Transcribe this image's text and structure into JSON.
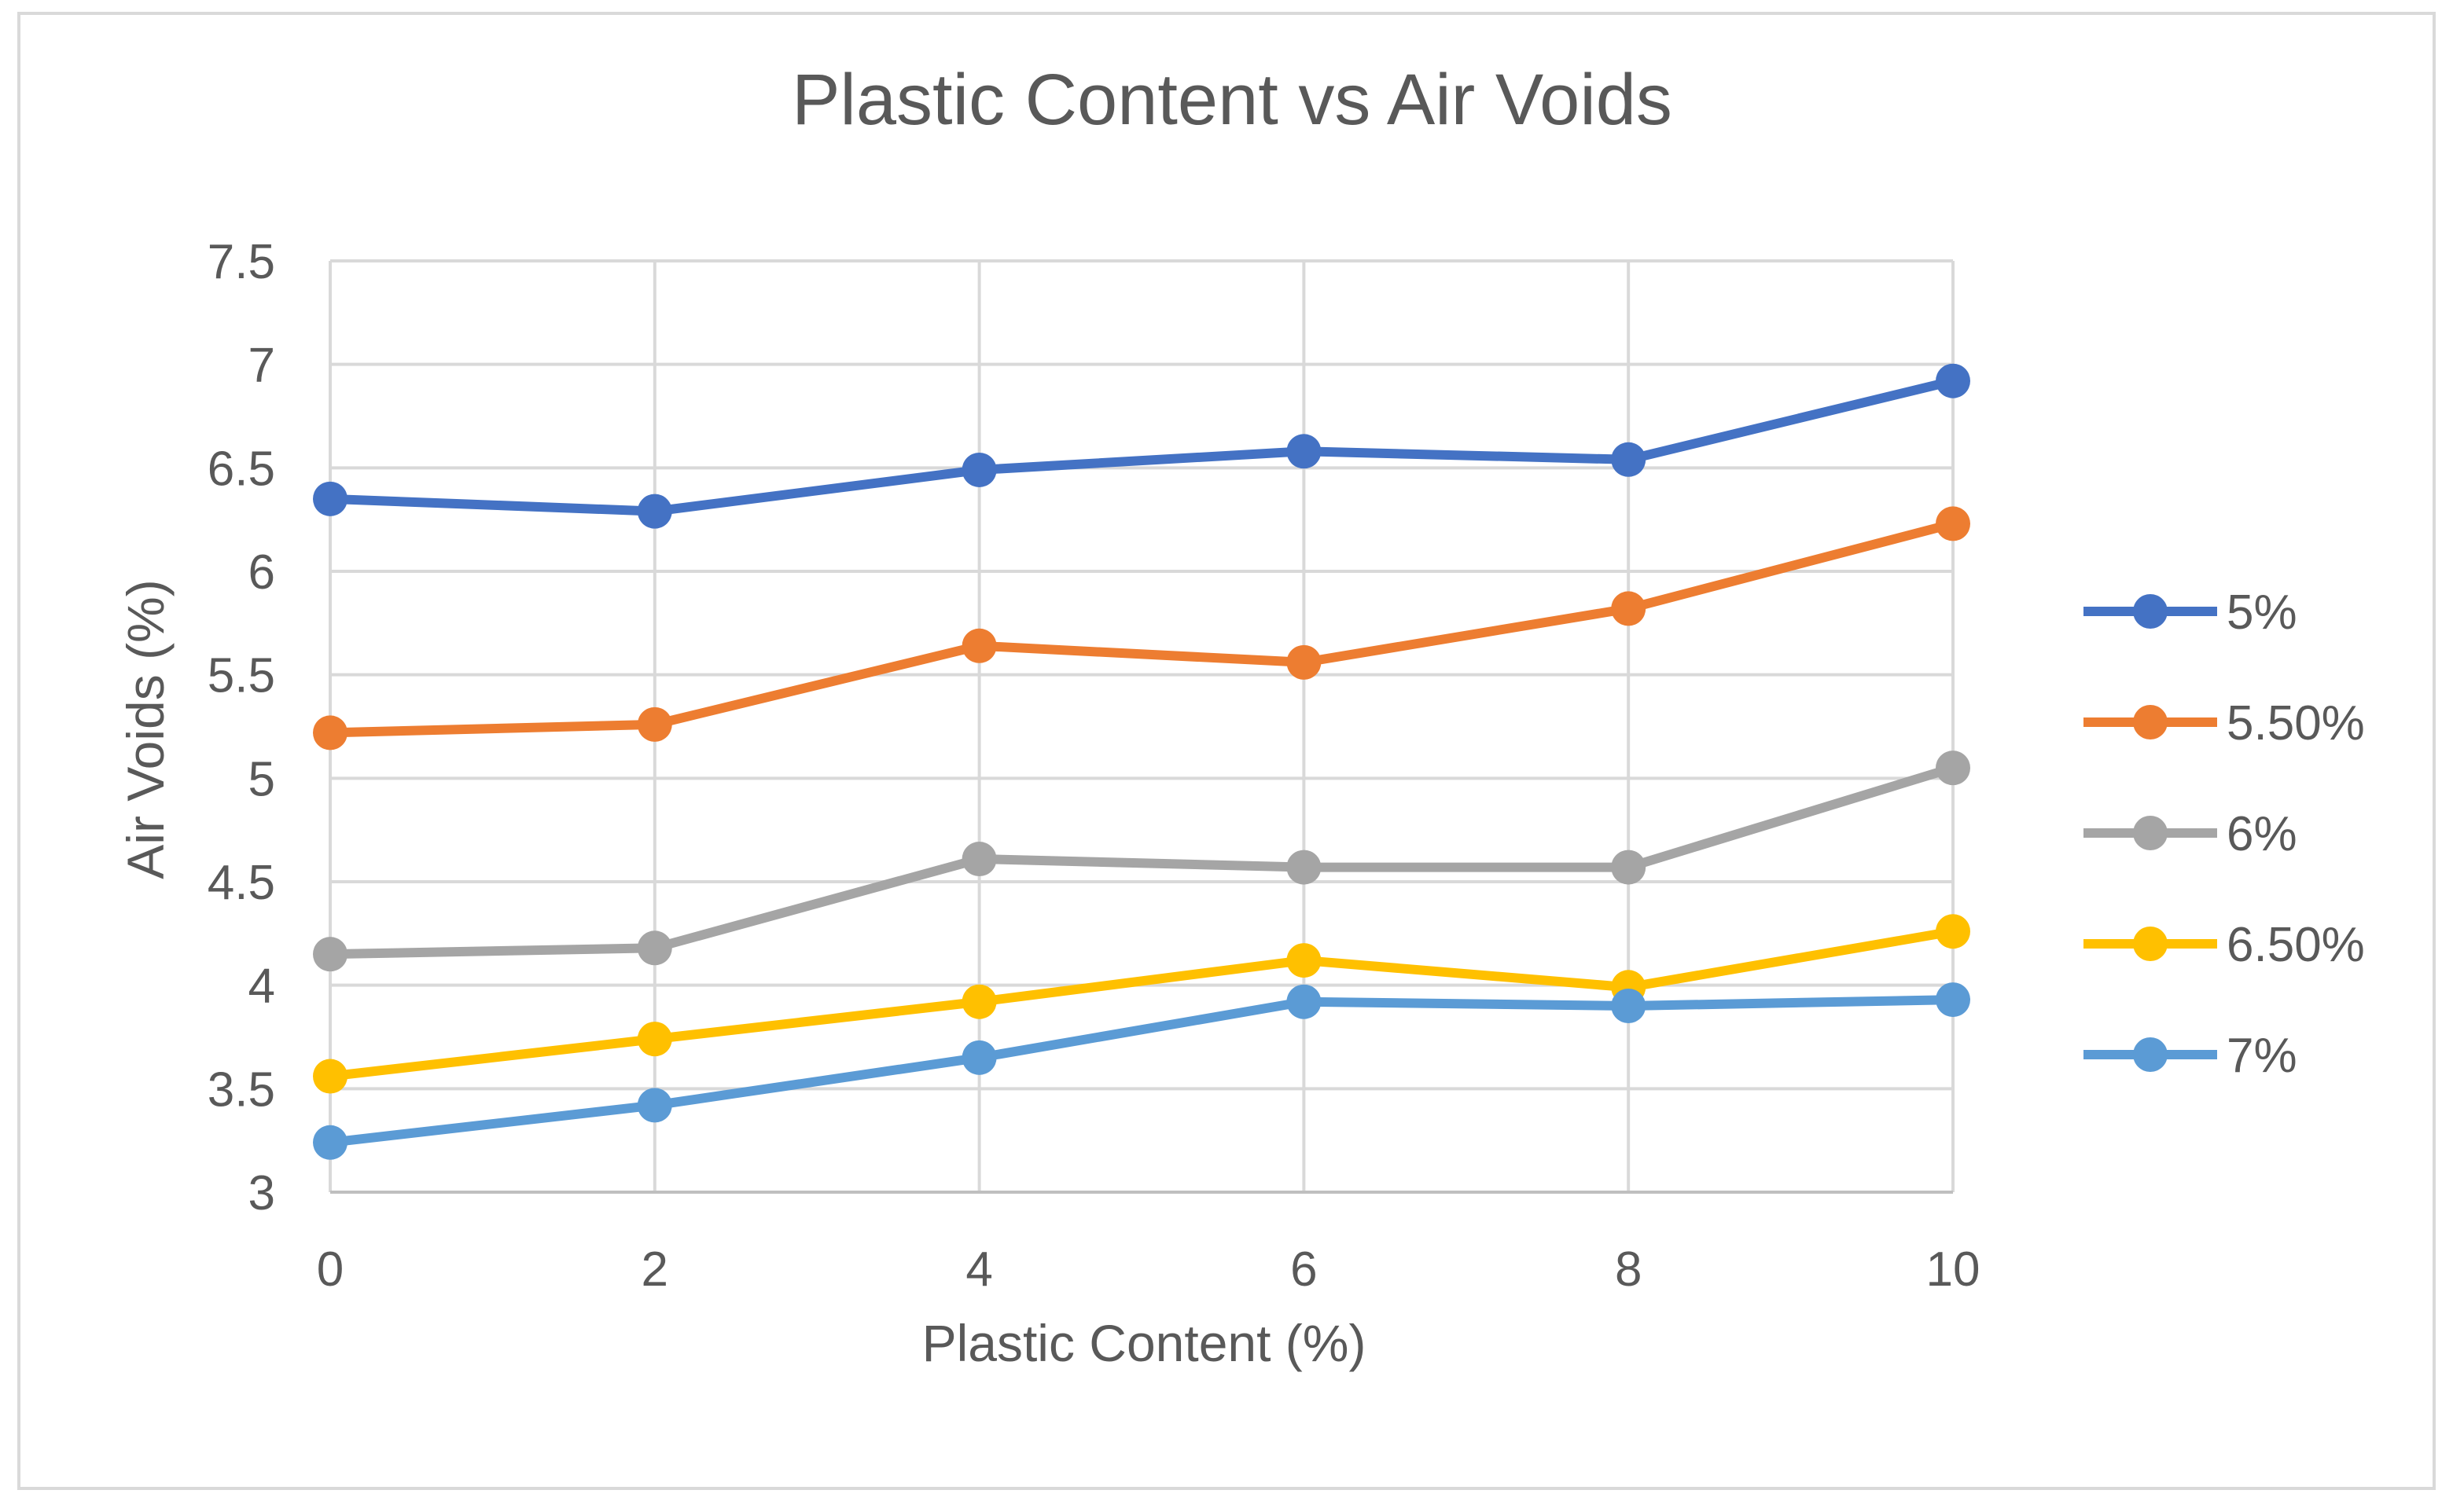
{
  "chart_data": {
    "type": "line",
    "title": "Plastic Content vs Air Voids",
    "xlabel": "Plastic Content (%)",
    "ylabel": "Air Voids (%)",
    "x": [
      0,
      2,
      4,
      6,
      8,
      10
    ],
    "x_tick_labels": [
      "0",
      "2",
      "4",
      "6",
      "8",
      "10"
    ],
    "xlim": [
      0,
      10
    ],
    "ylim": [
      3,
      7.5
    ],
    "y_tick_values": [
      3,
      3.5,
      4,
      4.5,
      5,
      5.5,
      6,
      6.5,
      7,
      7.5
    ],
    "y_tick_labels": [
      "3",
      "3.5",
      "4",
      "4.5",
      "5",
      "5.5",
      "6",
      "6.5",
      "7",
      "7.5"
    ],
    "grid": true,
    "legend_position": "right",
    "series": [
      {
        "name": "5%",
        "color": "#4472C4",
        "values": [
          6.35,
          6.29,
          6.49,
          6.58,
          6.54,
          6.92
        ]
      },
      {
        "name": "5.50%",
        "color": "#ED7D31",
        "values": [
          5.22,
          5.26,
          5.64,
          5.56,
          5.82,
          6.23
        ]
      },
      {
        "name": "6%",
        "color": "#A5A5A5",
        "values": [
          4.15,
          4.18,
          4.61,
          4.57,
          4.57,
          5.05
        ]
      },
      {
        "name": "6.50%",
        "color": "#FFC000",
        "values": [
          3.56,
          3.74,
          3.92,
          4.12,
          3.99,
          4.26
        ]
      },
      {
        "name": "7%",
        "color": "#5B9BD5",
        "values": [
          3.24,
          3.42,
          3.65,
          3.92,
          3.9,
          3.93
        ]
      }
    ]
  },
  "colors": {
    "grid": "#D9D9D9",
    "frame": "#D9D9D9",
    "text": "#595959"
  }
}
